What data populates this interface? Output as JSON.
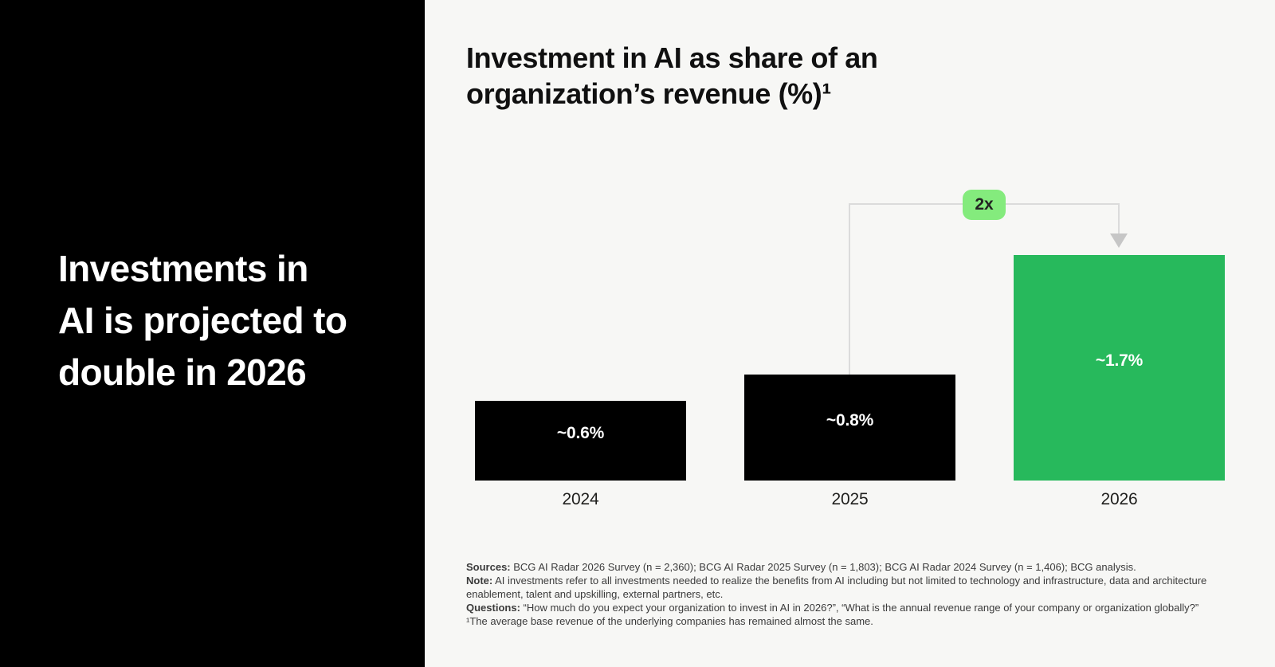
{
  "left_panel": {
    "headline_lines": [
      "Investments in",
      "AI is projected to",
      "double in 2026"
    ]
  },
  "chart_data": {
    "type": "bar",
    "title": "Investment in AI as share of an organization’s revenue (%)¹",
    "title_lines": [
      "Investment in AI as share of an",
      "organization’s revenue (%)¹"
    ],
    "categories": [
      "2024",
      "2025",
      "2026"
    ],
    "values": [
      0.6,
      0.8,
      1.7
    ],
    "value_labels": [
      "~0.6%",
      "~0.8%",
      "~1.7%"
    ],
    "bar_colors": [
      "#000000",
      "#000000",
      "#27b95c"
    ],
    "annotation": {
      "label": "2x",
      "from": "2025",
      "to": "2026"
    },
    "axes": "none",
    "grid": "off",
    "legend": "none"
  },
  "footnotes": [
    {
      "label": "Sources:",
      "text": " BCG AI Radar 2026 Survey (n = 2,360); BCG AI Radar 2025 Survey (n = 1,803); BCG AI Radar 2024 Survey (n = 1,406); BCG analysis."
    },
    {
      "label": "Note:",
      "text": " AI investments refer to all investments needed to realize the benefits from AI including but not limited to technology and infrastructure, data and architecture enablement, talent and upskilling, external partners, etc."
    },
    {
      "label": "Questions:",
      "text": " “How much do you expect your organization to invest in AI in 2026?”, “What is the annual revenue range of your company or organization globally?”"
    },
    {
      "label": "",
      "text": "¹The average base revenue of the underlying companies has remained almost the same."
    }
  ],
  "colors": {
    "background": "#f7f7f5",
    "panel_black": "#000000",
    "accent_green": "#27b95c",
    "badge_green": "#84eb7d",
    "connector_gray": "#dbdbdb",
    "arrow_gray": "#c6c6c6"
  }
}
